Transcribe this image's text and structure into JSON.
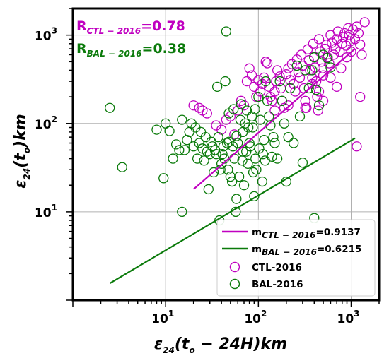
{
  "chart_data": {
    "type": "scatter",
    "xscale": "log",
    "yscale": "log",
    "xlim": [
      1.0,
      2000
    ],
    "ylim": [
      1.0,
      2000
    ],
    "grid": true,
    "legend_placement": "lower-right",
    "xlabel": {
      "main": "ε",
      "sub": "24",
      "rest": "(t",
      "sub2": "o",
      "rest2": " − 24H)km"
    },
    "ylabel": {
      "main": "ε",
      "sub": "24",
      "rest": "(t",
      "sub2": "o",
      "rest2": ")km"
    },
    "x_ticks": [
      {
        "base": "10",
        "exp": "1",
        "value": 10
      },
      {
        "base": "10",
        "exp": "2",
        "value": 100
      },
      {
        "base": "10",
        "exp": "3",
        "value": 1000
      }
    ],
    "y_ticks": [
      {
        "base": "10",
        "exp": "1",
        "value": 10
      },
      {
        "base": "10",
        "exp": "2",
        "value": 100
      },
      {
        "base": "10",
        "exp": "3",
        "value": 1000
      }
    ],
    "annotations": [
      {
        "prefix": "R",
        "sub": "CTL − 2016",
        "value": "=0.78",
        "color": "#c000c0"
      },
      {
        "prefix": "R",
        "sub": "BAL − 2016",
        "value": "=0.38",
        "color": "#0a7a0a"
      }
    ],
    "fit_lines": [
      {
        "label_prefix": "m",
        "label_sub": "CTL − 2016",
        "label_value": "=0.9137",
        "slope": 0.9137,
        "color": "#c000c0",
        "x_range": [
          20,
          1100
        ],
        "y_start": 18
      },
      {
        "label_prefix": "m",
        "label_sub": "BAL − 2016",
        "label_value": "=0.6215",
        "slope": 0.6215,
        "color": "#0a7a0a",
        "x_range": [
          2.5,
          1100
        ],
        "y_start": 1.55
      }
    ],
    "series": [
      {
        "name": "CTL-2016",
        "color": "#c000c0",
        "points": [
          [
            20,
            160
          ],
          [
            23,
            150
          ],
          [
            25,
            140
          ],
          [
            28,
            130
          ],
          [
            35,
            95
          ],
          [
            40,
            85
          ],
          [
            45,
            110
          ],
          [
            50,
            120
          ],
          [
            55,
            75
          ],
          [
            60,
            140
          ],
          [
            65,
            180
          ],
          [
            70,
            160
          ],
          [
            75,
            300
          ],
          [
            80,
            420
          ],
          [
            85,
            350
          ],
          [
            90,
            260
          ],
          [
            95,
            200
          ],
          [
            100,
            310
          ],
          [
            105,
            230
          ],
          [
            110,
            280
          ],
          [
            115,
            330
          ],
          [
            120,
            500
          ],
          [
            125,
            480
          ],
          [
            130,
            260
          ],
          [
            135,
            200
          ],
          [
            140,
            180
          ],
          [
            150,
            230
          ],
          [
            155,
            300
          ],
          [
            160,
            400
          ],
          [
            170,
            340
          ],
          [
            175,
            250
          ],
          [
            180,
            180
          ],
          [
            190,
            150
          ],
          [
            200,
            360
          ],
          [
            210,
            420
          ],
          [
            220,
            310
          ],
          [
            230,
            470
          ],
          [
            240,
            280
          ],
          [
            250,
            230
          ],
          [
            260,
            530
          ],
          [
            270,
            380
          ],
          [
            280,
            330
          ],
          [
            290,
            600
          ],
          [
            300,
            450
          ],
          [
            310,
            250
          ],
          [
            320,
            180
          ],
          [
            330,
            150
          ],
          [
            340,
            690
          ],
          [
            350,
            520
          ],
          [
            360,
            400
          ],
          [
            380,
            330
          ],
          [
            390,
            800
          ],
          [
            400,
            570
          ],
          [
            410,
            430
          ],
          [
            420,
            300
          ],
          [
            430,
            200
          ],
          [
            440,
            140
          ],
          [
            450,
            900
          ],
          [
            460,
            650
          ],
          [
            480,
            500
          ],
          [
            490,
            420
          ],
          [
            500,
            350
          ],
          [
            520,
            700
          ],
          [
            540,
            780
          ],
          [
            560,
            560
          ],
          [
            580,
            480
          ],
          [
            600,
            1000
          ],
          [
            620,
            820
          ],
          [
            650,
            600
          ],
          [
            680,
            700
          ],
          [
            700,
            900
          ],
          [
            720,
            1100
          ],
          [
            750,
            650
          ],
          [
            780,
            420
          ],
          [
            800,
            800
          ],
          [
            820,
            950
          ],
          [
            850,
            1050
          ],
          [
            880,
            760
          ],
          [
            900,
            560
          ],
          [
            930,
            1200
          ],
          [
            950,
            1000
          ],
          [
            980,
            850
          ],
          [
            1000,
            650
          ],
          [
            1050,
            1150
          ],
          [
            1100,
            900
          ],
          [
            1150,
            1250
          ],
          [
            1200,
            1050
          ],
          [
            1250,
            780
          ],
          [
            1300,
            600
          ],
          [
            1400,
            1400
          ],
          [
            1150,
            55
          ],
          [
            1250,
            200
          ],
          [
            500,
            180
          ],
          [
            320,
            150
          ],
          [
            150,
            140
          ],
          [
            210,
            160
          ],
          [
            450,
            230
          ],
          [
            600,
            330
          ],
          [
            700,
            260
          ],
          [
            380,
            280
          ]
        ]
      },
      {
        "name": "BAL-2016",
        "color": "#0a7a0a",
        "points": [
          [
            2.5,
            150
          ],
          [
            3.4,
            32
          ],
          [
            8,
            85
          ],
          [
            9.5,
            24
          ],
          [
            10,
            100
          ],
          [
            11,
            82
          ],
          [
            12,
            40
          ],
          [
            13,
            58
          ],
          [
            14,
            50
          ],
          [
            15,
            110
          ],
          [
            15,
            10
          ],
          [
            16,
            50
          ],
          [
            17,
            65
          ],
          [
            18,
            80
          ],
          [
            19,
            100
          ],
          [
            20,
            55
          ],
          [
            21,
            90
          ],
          [
            22,
            40
          ],
          [
            23,
            60
          ],
          [
            24,
            80
          ],
          [
            25,
            52
          ],
          [
            26,
            38
          ],
          [
            27,
            70
          ],
          [
            28,
            48
          ],
          [
            29,
            18
          ],
          [
            30,
            45
          ],
          [
            31,
            62
          ],
          [
            32,
            55
          ],
          [
            33,
            28
          ],
          [
            34,
            50
          ],
          [
            35,
            45
          ],
          [
            36,
            260
          ],
          [
            37,
            70
          ],
          [
            38,
            8
          ],
          [
            39,
            30
          ],
          [
            40,
            35
          ],
          [
            41,
            45
          ],
          [
            42,
            55
          ],
          [
            43,
            40
          ],
          [
            44,
            300
          ],
          [
            45,
            1100
          ],
          [
            46,
            60
          ],
          [
            47,
            30
          ],
          [
            48,
            130
          ],
          [
            50,
            25
          ],
          [
            52,
            22
          ],
          [
            53,
            55
          ],
          [
            55,
            40
          ],
          [
            57,
            10
          ],
          [
            58,
            14
          ],
          [
            60,
            60
          ],
          [
            62,
            25
          ],
          [
            65,
            165
          ],
          [
            67,
            38
          ],
          [
            68,
            80
          ],
          [
            70,
            20
          ],
          [
            72,
            100
          ],
          [
            74,
            48
          ],
          [
            75,
            140
          ],
          [
            77,
            35
          ],
          [
            80,
            60
          ],
          [
            82,
            55
          ],
          [
            85,
            120
          ],
          [
            87,
            90
          ],
          [
            90,
            15
          ],
          [
            93,
            40
          ],
          [
            95,
            30
          ],
          [
            100,
            200
          ],
          [
            105,
            110
          ],
          [
            110,
            22
          ],
          [
            112,
            45
          ],
          [
            115,
            65
          ],
          [
            120,
            300
          ],
          [
            125,
            180
          ],
          [
            130,
            120
          ],
          [
            135,
            95
          ],
          [
            140,
            42
          ],
          [
            145,
            70
          ],
          [
            150,
            60
          ],
          [
            160,
            40
          ],
          [
            170,
            300
          ],
          [
            180,
            180
          ],
          [
            190,
            100
          ],
          [
            200,
            22
          ],
          [
            210,
            70
          ],
          [
            220,
            250
          ],
          [
            240,
            60
          ],
          [
            260,
            450
          ],
          [
            280,
            120
          ],
          [
            300,
            36
          ],
          [
            320,
            400
          ],
          [
            350,
            250
          ],
          [
            380,
            400
          ],
          [
            400,
            8.5
          ],
          [
            420,
            240
          ],
          [
            450,
            160
          ],
          [
            500,
            600
          ],
          [
            550,
            550
          ],
          [
            600,
            430
          ],
          [
            400,
            560
          ],
          [
            48,
            62
          ],
          [
            58,
            72
          ],
          [
            68,
            48
          ],
          [
            88,
            28
          ],
          [
            102,
            52
          ],
          [
            118,
            38
          ],
          [
            54,
            145
          ],
          [
            64,
            110
          ],
          [
            78,
            90
          ],
          [
            92,
            145
          ]
        ]
      }
    ]
  }
}
